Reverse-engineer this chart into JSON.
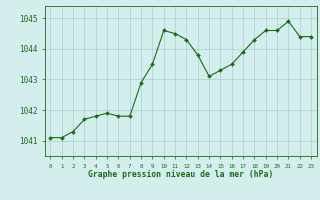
{
  "hours": [
    0,
    1,
    2,
    3,
    4,
    5,
    6,
    7,
    8,
    9,
    10,
    11,
    12,
    13,
    14,
    15,
    16,
    17,
    18,
    19,
    20,
    21,
    22,
    23
  ],
  "pressure": [
    1041.1,
    1041.1,
    1041.3,
    1041.7,
    1041.8,
    1041.9,
    1041.8,
    1041.8,
    1042.9,
    1043.5,
    1044.6,
    1044.5,
    1044.3,
    1043.8,
    1043.1,
    1043.3,
    1043.5,
    1043.9,
    1044.3,
    1044.6,
    1044.6,
    1044.9,
    1044.4,
    1044.4
  ],
  "line_color": "#1a6b1a",
  "marker_color": "#1a6b1a",
  "bg_color": "#d4eeed",
  "grid_color": "#aed4d0",
  "xlabel": "Graphe pression niveau de la mer (hPa)",
  "xlabel_color": "#1a6b1a",
  "tick_color": "#1a6b1a",
  "ylim": [
    1040.5,
    1045.4
  ],
  "yticks": [
    1041,
    1042,
    1043,
    1044,
    1045
  ],
  "figsize": [
    3.2,
    2.0
  ],
  "dpi": 100
}
